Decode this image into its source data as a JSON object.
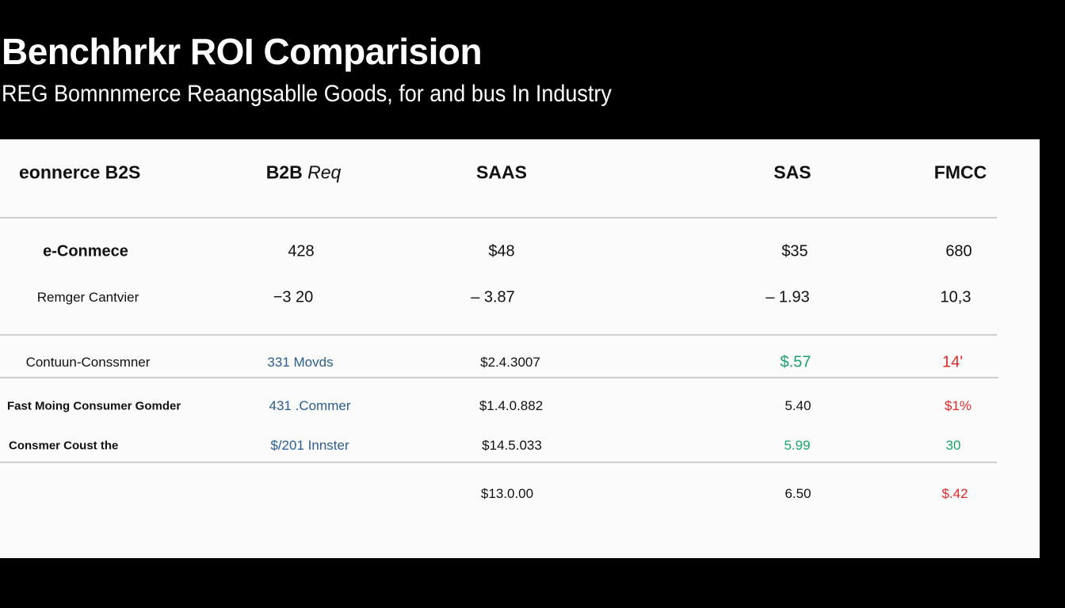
{
  "title": "Benchhrkr ROI Comparision",
  "subtitle": "REG Bomnnmerce Reaangsablle Goods, for and bus In Industry",
  "colors": {
    "background": "#000000",
    "panel": "#fbfbfb",
    "positive": "#1aa36a",
    "negative": "#e02a2a",
    "link": "#2a5d8f"
  },
  "table": {
    "headers": [
      "eonnerce B2S",
      "B2B",
      "Req",
      "SAAS",
      "SAS",
      "FMCC"
    ],
    "rows": [
      {
        "label": "e-Conmece",
        "values": [
          "428",
          "$48",
          "$35",
          "680"
        ]
      },
      {
        "label": "Remger Cantvier",
        "values": [
          "−3 20",
          "– 3.87",
          "– 1.93",
          "10,3"
        ]
      },
      {
        "label": "Contuun-Conssmner",
        "values": [
          "331 Movds",
          "$2.4.3007",
          "$.57",
          "14'"
        ]
      },
      {
        "label": "Fast Moing Consumer Gomder",
        "values": [
          "431 .Commer",
          "$1.4.0.882",
          "5.40",
          "$1%"
        ]
      },
      {
        "label": "Consmer Coust the",
        "values": [
          "$/201 Innster",
          "$14.5.033",
          "5.99",
          "30"
        ]
      },
      {
        "label": "",
        "values": [
          "",
          "$13.0.00",
          "6.50",
          "$.42"
        ]
      }
    ]
  }
}
